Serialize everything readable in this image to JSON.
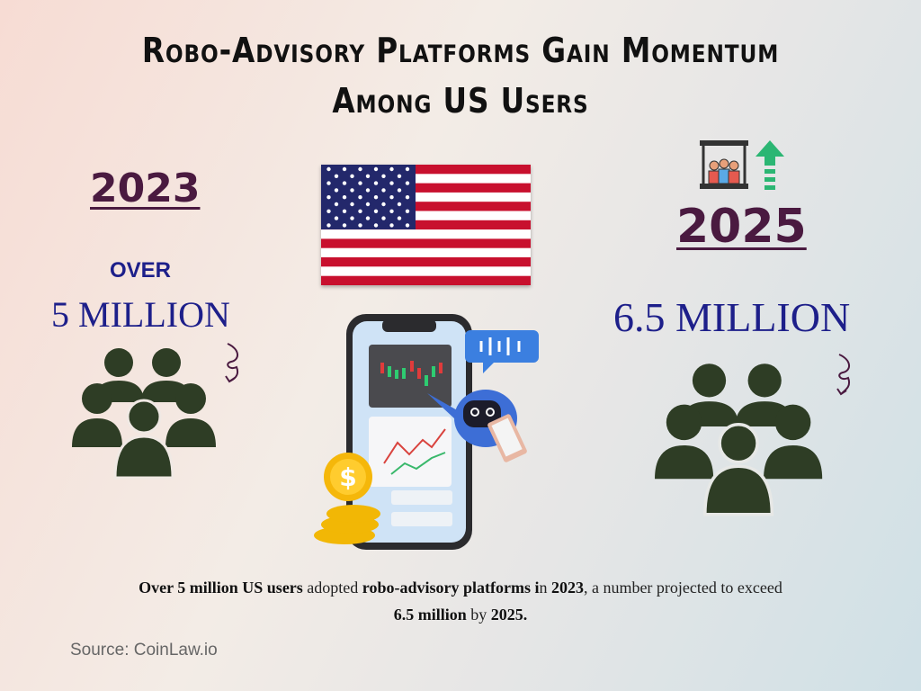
{
  "title": "Robo-Advisory Platforms Gain Momentum Among US Users",
  "left": {
    "year": "2023",
    "prefix": "OVER",
    "value": "5 MILLION"
  },
  "right": {
    "year": "2025",
    "value": "6.5 MILLION"
  },
  "caption": {
    "p1": "Over 5 million US users",
    "p2": " adopted ",
    "p3": "robo-advisory platforms i",
    "p4": "n ",
    "p5": "2023",
    "p6": ", a number projected to exceed ",
    "p7": "6.5 million",
    "p8": " by ",
    "p9": "2025."
  },
  "source": "Source: CoinLaw.io",
  "colors": {
    "year": "#4a1a40",
    "value": "#1d1f8a",
    "people": "#2e3d25",
    "arrow": "#2bb673"
  },
  "icons": [
    "us-flag",
    "people-group-icon",
    "audience-growth-icon",
    "phone-robo-advisor-illustration",
    "curly-arrow-icon"
  ]
}
